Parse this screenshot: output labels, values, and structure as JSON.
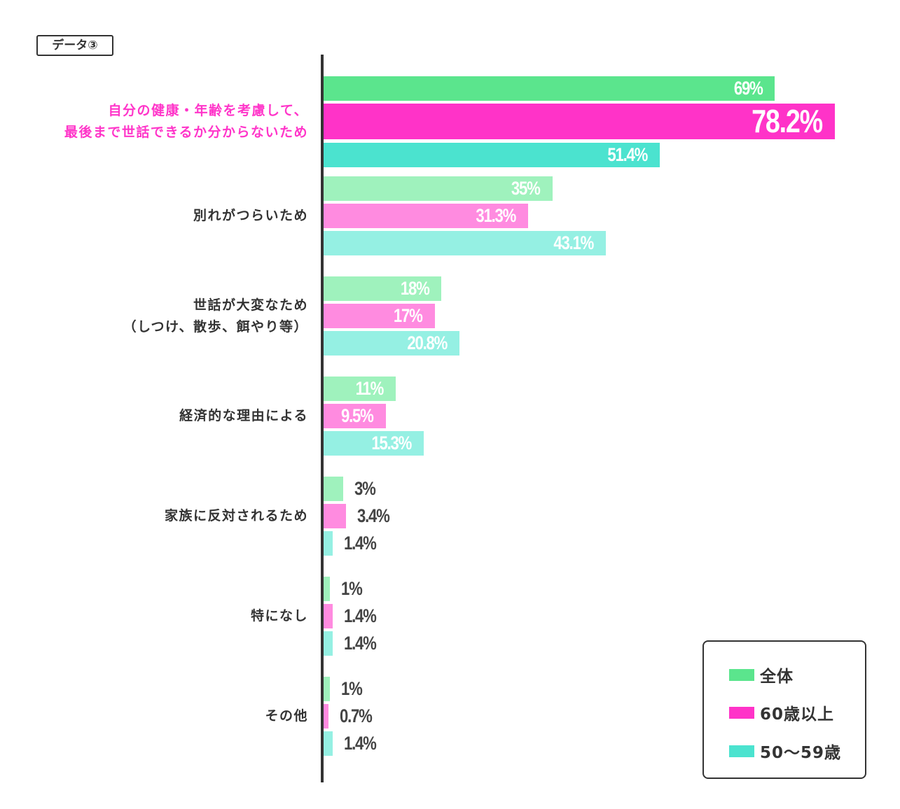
{
  "tag": "データ③",
  "chart_data": {
    "type": "bar",
    "orientation": "horizontal",
    "xlim": [
      0,
      100
    ],
    "categories": [
      "自分の健康・年齢を考慮して、最後まで世話できるか分からないため",
      "別れがつらいため",
      "世話が大変なため（しつけ、散歩、餌やり等）",
      "経済的な理由による",
      "家族に反対されるため",
      "特になし",
      "その他"
    ],
    "category_lines": [
      [
        "自分の健康・年齢を考慮して、",
        "最後まで世話できるか分からないため"
      ],
      [
        "別れがつらいため"
      ],
      [
        "世話が大変なため",
        "（しつけ、散歩、餌やり等）"
      ],
      [
        "経済的な理由による"
      ],
      [
        "家族に反対されるため"
      ],
      [
        "特になし"
      ],
      [
        "その他"
      ]
    ],
    "highlight_category": 0,
    "series": [
      {
        "name": "全体",
        "color": "#5be58d",
        "light_color": "#9ff2bd",
        "values": [
          69,
          35,
          18,
          11,
          3,
          1,
          1
        ],
        "labels": [
          "69%",
          "35%",
          "18%",
          "11%",
          "3%",
          "1%",
          "1%"
        ]
      },
      {
        "name": "60歳以上",
        "color": "#ff33c8",
        "light_color": "#ff8be0",
        "values": [
          78.2,
          31.3,
          17,
          9.5,
          3.4,
          1.4,
          0.7
        ],
        "labels": [
          "78.2%",
          "31.3%",
          "17%",
          "9.5%",
          "3.4%",
          "1.4%",
          "0.7%"
        ]
      },
      {
        "name": "50～59歳",
        "color": "#4be3cf",
        "light_color": "#95f0e3",
        "values": [
          51.4,
          43.1,
          20.8,
          15.3,
          1.4,
          1.4,
          1.4
        ],
        "labels": [
          "51.4%",
          "43.1%",
          "20.8%",
          "15.3%",
          "1.4%",
          "1.4%",
          "1.4%"
        ]
      }
    ],
    "legend": {
      "position": "bottom-right",
      "items": [
        "全体",
        "60歳以上",
        "50～59歳"
      ]
    },
    "grid": false
  }
}
